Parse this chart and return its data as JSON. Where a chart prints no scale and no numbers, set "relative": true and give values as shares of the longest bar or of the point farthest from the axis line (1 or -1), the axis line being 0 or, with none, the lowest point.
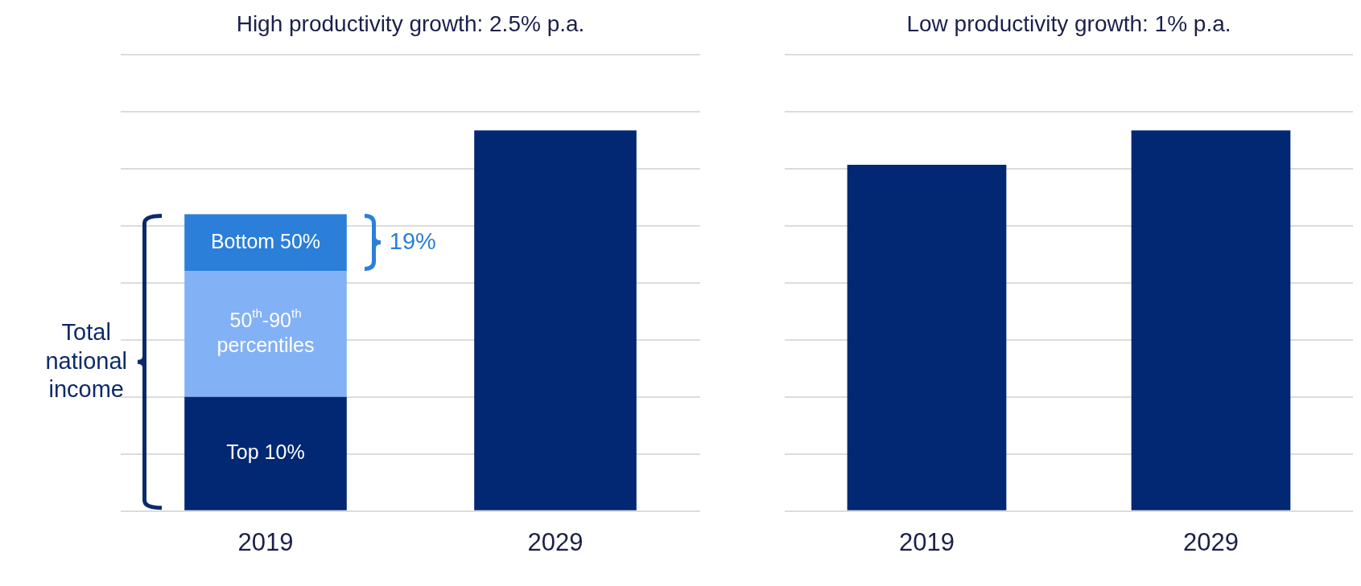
{
  "chart_data": [
    {
      "type": "bar",
      "title": "High productivity growth: 2.5% p.a.",
      "categories": [
        "2019",
        "2029"
      ],
      "stacked": true,
      "relative": true,
      "grid": "y",
      "annotations": [
        "Total national income",
        "19%"
      ],
      "series": [
        {
          "name": "Top 10%",
          "color": "#022873",
          "values": [
            0.3,
            null
          ]
        },
        {
          "name": "50$^{th}$-90$^{th}$ percentiles",
          "color": "#83b1f5",
          "values": [
            0.33,
            null
          ]
        },
        {
          "name": "Bottom 50%",
          "color": "#2b7fd8",
          "values": [
            0.15,
            null
          ]
        },
        {
          "color": "#022873",
          "values": [
            null,
            1
          ]
        }
      ]
    },
    {
      "type": "bar",
      "title": "Low productivity growth: 1% p.a.",
      "categories": [
        "2019",
        "2029"
      ],
      "relative": true,
      "grid": "y",
      "series": [
        {
          "color": "#022873",
          "values": [
            0.91,
            1
          ]
        }
      ]
    }
  ]
}
